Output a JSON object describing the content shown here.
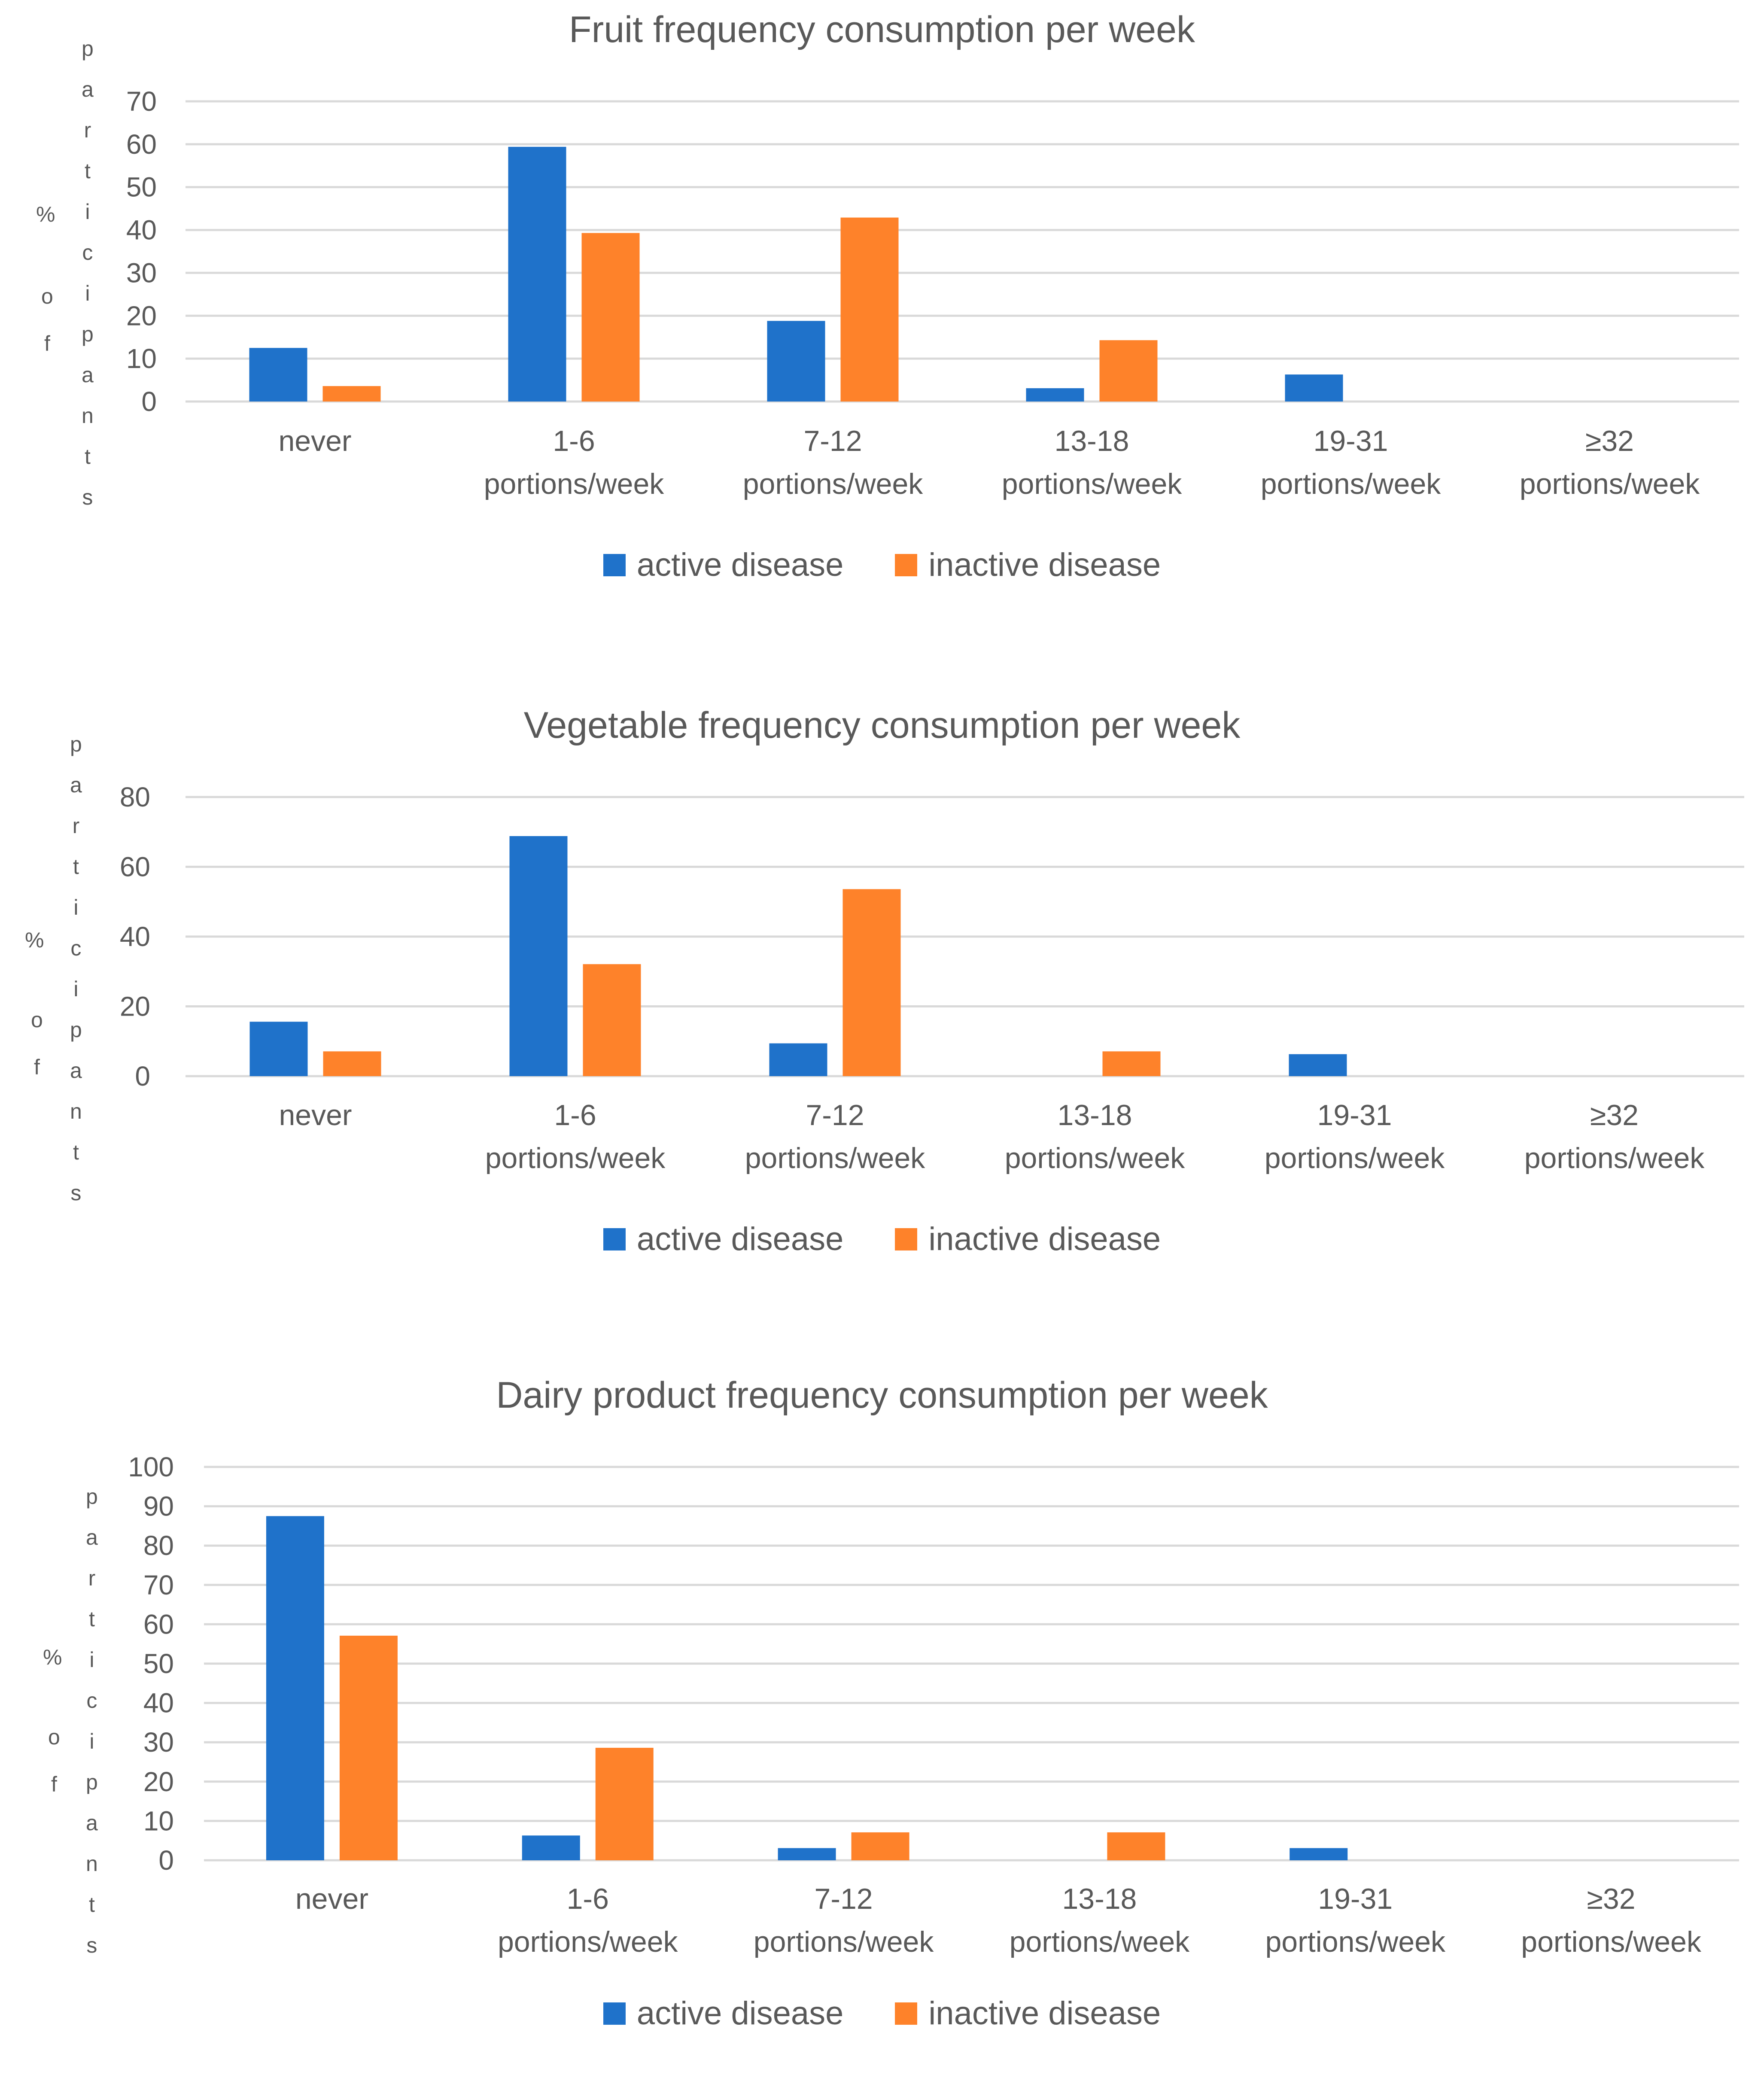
{
  "colors": {
    "active": "#1F72CA",
    "inactive": "#FE822A",
    "grid": "#D9D9D9",
    "text": "#595959"
  },
  "legend": {
    "active": "active disease",
    "inactive": "inactive disease"
  },
  "chart_data": [
    {
      "type": "bar",
      "title": "Fruit frequency consumption per week",
      "ylabel_pct": "%",
      "ylabel_col1": "participants",
      "ylabel_col2": "of",
      "categories": [
        [
          "never"
        ],
        [
          "1-6",
          "portions/week"
        ],
        [
          "7-12",
          "portions/week"
        ],
        [
          "13-18",
          "portions/week"
        ],
        [
          "19-31",
          "portions/week"
        ],
        [
          "≥32",
          "portions/week"
        ]
      ],
      "ylim": [
        0,
        70
      ],
      "yticks": [
        0,
        10,
        20,
        30,
        40,
        50,
        60,
        70
      ],
      "series": [
        {
          "name": "active disease",
          "values": [
            12.5,
            59.4,
            18.8,
            3.1,
            6.3,
            0
          ]
        },
        {
          "name": "inactive disease",
          "values": [
            3.6,
            39.3,
            42.9,
            14.3,
            0,
            0
          ]
        }
      ]
    },
    {
      "type": "bar",
      "title": "Vegetable frequency consumption per week",
      "ylabel_pct": "%",
      "ylabel_col1": "participants",
      "ylabel_col2": "of",
      "categories": [
        [
          "never"
        ],
        [
          "1-6",
          "portions/week"
        ],
        [
          "7-12",
          "portions/week"
        ],
        [
          "13-18",
          "portions/week"
        ],
        [
          "19-31",
          "portions/week"
        ],
        [
          "≥32",
          "portions/week"
        ]
      ],
      "ylim": [
        0,
        80
      ],
      "yticks": [
        0,
        20,
        40,
        60,
        80
      ],
      "series": [
        {
          "name": "active disease",
          "values": [
            15.6,
            68.8,
            9.4,
            0,
            6.3,
            0
          ]
        },
        {
          "name": "inactive disease",
          "values": [
            7.1,
            32.1,
            53.6,
            7.1,
            0,
            0
          ]
        }
      ]
    },
    {
      "type": "bar",
      "title": "Dairy product frequency consumption per week",
      "ylabel_pct": "%",
      "ylabel_col1": "participants",
      "ylabel_col2": "of",
      "categories": [
        [
          "never"
        ],
        [
          "1-6",
          "portions/week"
        ],
        [
          "7-12",
          "portions/week"
        ],
        [
          "13-18",
          "portions/week"
        ],
        [
          "19-31",
          "portions/week"
        ],
        [
          "≥32",
          "portions/week"
        ]
      ],
      "ylim": [
        0,
        100
      ],
      "yticks": [
        0,
        10,
        20,
        30,
        40,
        50,
        60,
        70,
        80,
        90,
        100
      ],
      "series": [
        {
          "name": "active disease",
          "values": [
            87.5,
            6.3,
            3.1,
            0,
            3.1,
            0
          ]
        },
        {
          "name": "inactive disease",
          "values": [
            57.1,
            28.6,
            7.1,
            7.1,
            0,
            0
          ]
        }
      ]
    }
  ]
}
